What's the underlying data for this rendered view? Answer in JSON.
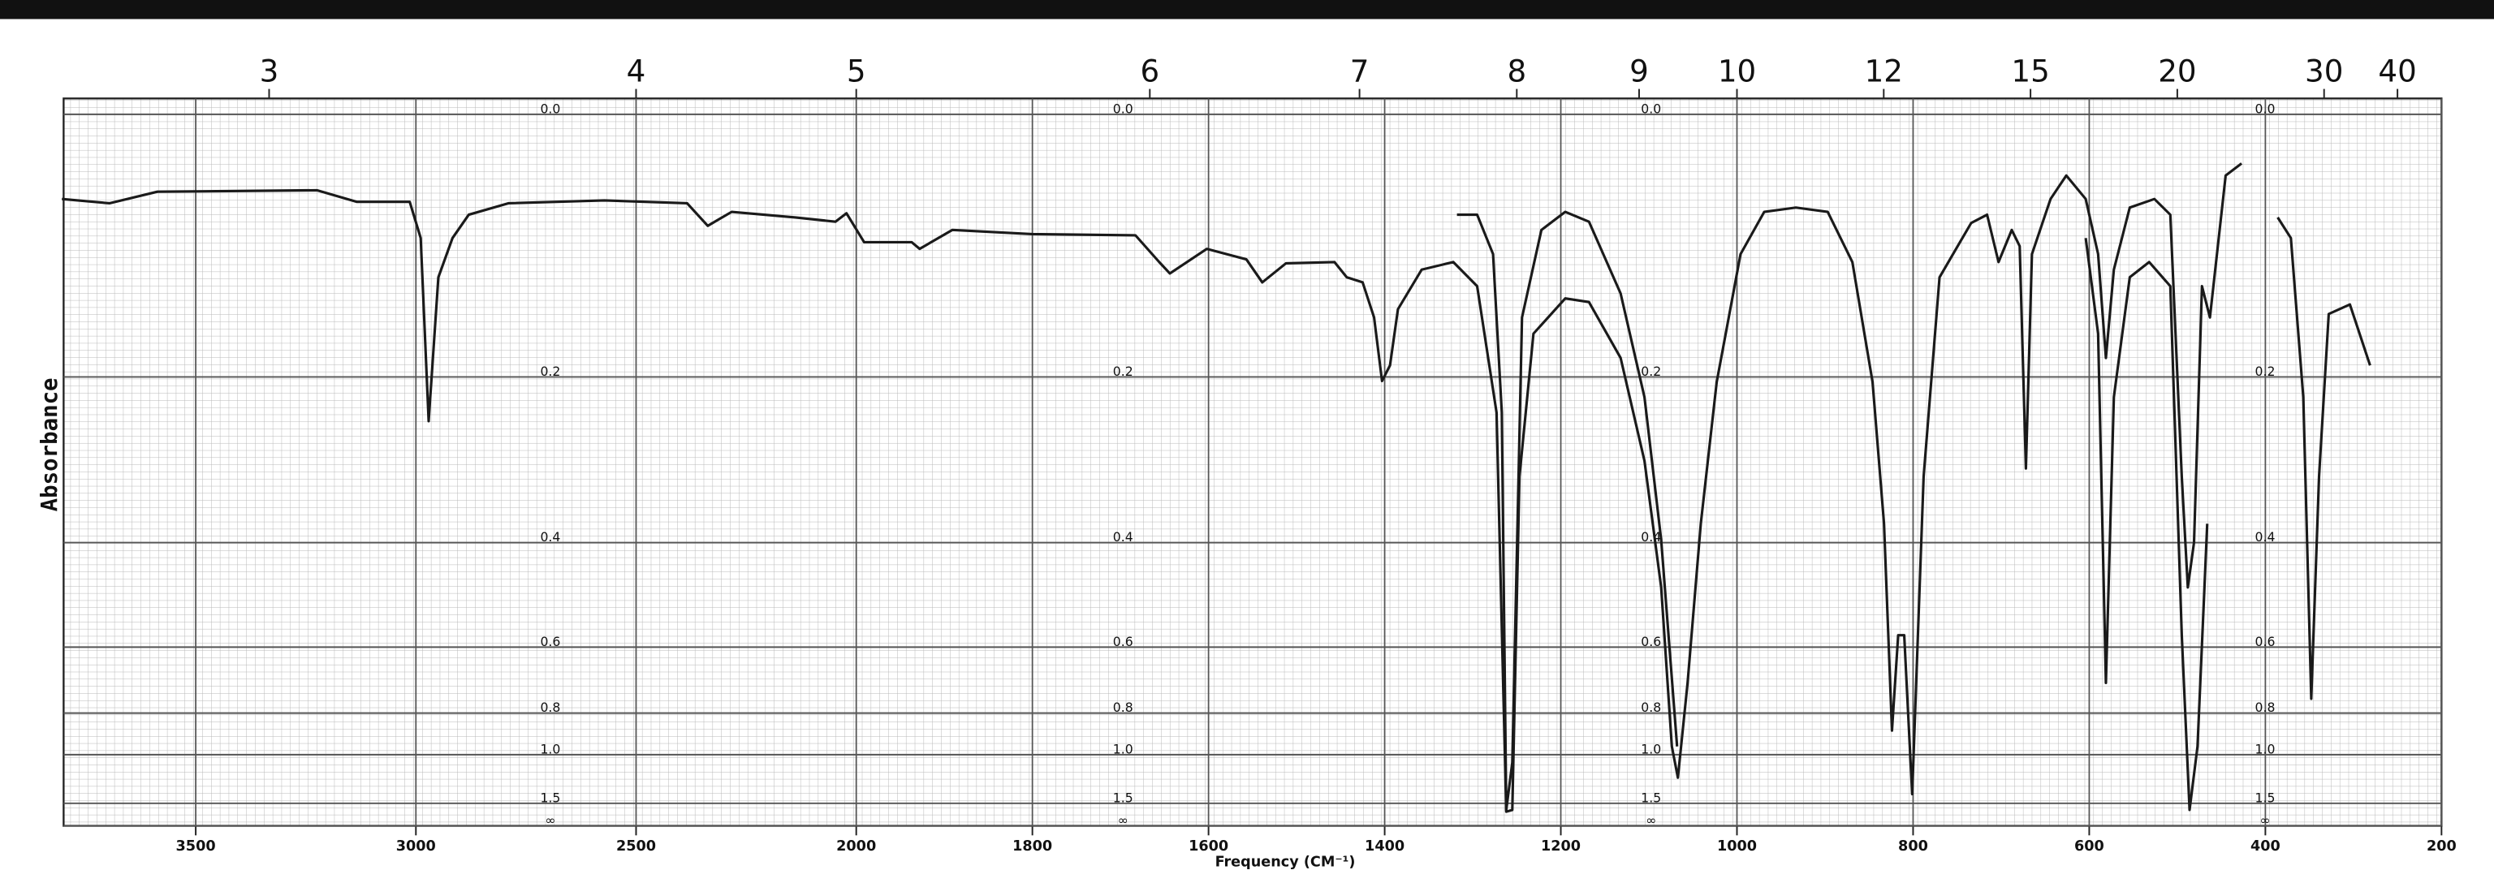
{
  "chart_data": {
    "type": "line",
    "y_label": "Absorbance",
    "x_label": "Frequency (CM⁻¹)",
    "xlim": [
      3800,
      200
    ],
    "x_scale_change": 2000,
    "xticks": [
      3500,
      3000,
      2500,
      2000,
      1800,
      1600,
      1400,
      1200,
      1000,
      800,
      600,
      400,
      200
    ],
    "x2ticks": [
      3,
      4,
      5,
      6,
      7,
      8,
      9,
      10,
      12,
      15,
      20,
      30,
      40
    ],
    "ylim": [
      0,
      "Infinity"
    ],
    "yscale": "absorbance",
    "yticks": [
      {
        "value": 0,
        "label": "0.0"
      },
      0.2,
      0.4,
      0.6,
      0.8,
      {
        "value": 1,
        "label": "1.0"
      },
      1.5,
      {
        "value": "Infinity",
        "label": "∞"
      }
    ],
    "grid": true,
    "series": [
      {
        "color": "#1a1a1a",
        "x": [
          3804,
          3696,
          3587,
          3225,
          3134,
          3014,
          2989,
          2971,
          2949,
          2917,
          2880,
          2790,
          2572,
          2384,
          2337,
          2283,
          2138,
          2047,
          2022,
          1991,
          1937,
          1928,
          1891,
          1800,
          1683,
          1656,
          1644,
          1602,
          1557,
          1539,
          1512,
          1457,
          1443,
          1425,
          1412,
          1403,
          1394,
          1385,
          1358,
          1322,
          1295,
          1273,
          1262,
          1255,
          1247,
          1231,
          1195,
          1168,
          1132,
          1105,
          1086,
          1074,
          1067,
          1056,
          1041,
          1023,
          996,
          969,
          933,
          897,
          869,
          846,
          833,
          824,
          817,
          810,
          801,
          788,
          770,
          734,
          716,
          703,
          688,
          679,
          672,
          665,
          644,
          626,
          604,
          590,
          581,
          572,
          554,
          526,
          508,
          495,
          488,
          481,
          472,
          463,
          445,
          427,
          422,
          386,
          371,
          357,
          348,
          339,
          328,
          304,
          281
        ],
        "values": [
          0.055,
          0.058,
          0.05,
          0.049,
          0.057,
          0.057,
          0.083,
          0.245,
          0.113,
          0.083,
          0.066,
          0.058,
          0.056,
          0.058,
          0.074,
          0.064,
          0.068,
          0.071,
          0.065,
          0.086,
          0.086,
          0.091,
          0.077,
          0.08,
          0.081,
          0.101,
          0.11,
          0.091,
          0.099,
          0.117,
          0.102,
          0.101,
          0.113,
          0.117,
          0.146,
          0.204,
          0.189,
          0.139,
          0.107,
          0.101,
          0.12,
          0.236,
          1.7,
          1.65,
          0.309,
          0.16,
          0.13,
          0.133,
          0.182,
          0.29,
          0.475,
          0.952,
          1.17,
          0.697,
          0.372,
          0.205,
          0.095,
          0.064,
          0.061,
          0.064,
          0.101,
          0.205,
          0.372,
          0.873,
          0.572,
          0.572,
          1.35,
          0.309,
          0.113,
          0.072,
          0.066,
          0.101,
          0.077,
          0.089,
          0.299,
          0.095,
          0.055,
          0.039,
          0.055,
          0.095,
          0.182,
          0.107,
          0.061,
          0.055,
          0.066,
          0.309,
          0.475,
          0.4,
          0.12,
          0.146,
          0.039,
          0.031,
          null,
          0.068,
          0.083,
          0.22,
          0.748,
          0.309,
          0.143,
          0.135,
          0.189
        ]
      },
      {
        "color": "#1a1a1a",
        "x": [
          1318,
          1295,
          1277,
          1267,
          1262,
          1255,
          1244,
          1222,
          1195,
          1168,
          1132,
          1105,
          1086,
          1068,
          626,
          604,
          590,
          581,
          572,
          554,
          532,
          508,
          495,
          486,
          477,
          466
        ],
        "values": [
          0.066,
          0.066,
          0.095,
          0.236,
          1.65,
          1.05,
          0.146,
          0.077,
          0.064,
          0.071,
          0.126,
          0.22,
          0.396,
          0.952,
          null,
          0.083,
          0.16,
          0.697,
          0.22,
          0.113,
          0.101,
          0.12,
          0.572,
          1.65,
          0.952,
          0.372
        ]
      }
    ]
  }
}
